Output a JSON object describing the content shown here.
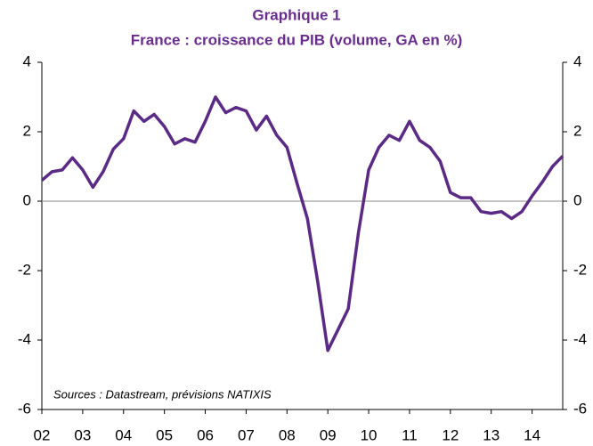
{
  "chart_data": {
    "type": "line",
    "title": "Graphique 1",
    "subtitle": "France : croissance du PIB (volume, GA en %)",
    "annotation": "Sources : Datastream, prévisions NATIXIS",
    "categories": [
      "02",
      null,
      null,
      null,
      "03",
      null,
      null,
      null,
      "04",
      null,
      null,
      null,
      "05",
      null,
      null,
      null,
      "06",
      null,
      null,
      null,
      "07",
      null,
      null,
      null,
      "08",
      null,
      null,
      null,
      "09",
      null,
      null,
      null,
      "10",
      null,
      null,
      null,
      "11",
      null,
      null,
      null,
      "12",
      null,
      null,
      null,
      "13",
      null,
      null,
      null,
      "14",
      null,
      null,
      null
    ],
    "series": [
      {
        "name": "PIB",
        "color": "#5b2a86",
        "values": [
          0.6,
          0.85,
          0.9,
          1.25,
          0.9,
          0.4,
          0.85,
          1.5,
          1.8,
          2.6,
          2.3,
          2.5,
          2.15,
          1.65,
          1.8,
          1.7,
          2.3,
          3.0,
          2.55,
          2.7,
          2.6,
          2.05,
          2.45,
          1.9,
          1.55,
          0.5,
          -0.5,
          -2.3,
          -4.3,
          -3.7,
          -3.1,
          -0.9,
          0.9,
          1.55,
          1.9,
          1.75,
          2.3,
          1.75,
          1.55,
          1.15,
          0.25,
          0.1,
          0.1,
          -0.3,
          -0.35,
          -0.3,
          -0.5,
          -0.3,
          0.15,
          0.55,
          1.0,
          1.3
        ]
      }
    ],
    "ylim": [
      -6,
      4
    ],
    "yticks": [
      -6,
      -4,
      -2,
      0,
      2,
      4
    ],
    "y2ticks": [
      -6,
      -4,
      -2,
      0,
      2,
      4
    ]
  }
}
